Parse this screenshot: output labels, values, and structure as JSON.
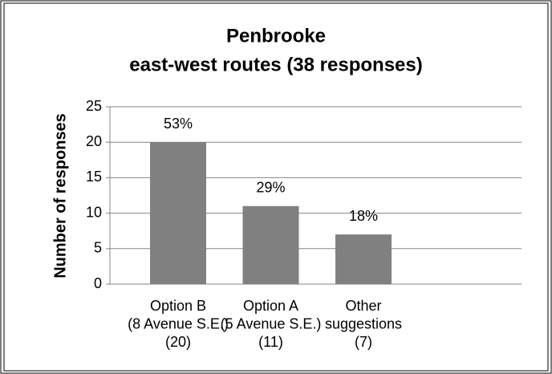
{
  "chart_data": {
    "type": "bar",
    "title": [
      "Penbrooke",
      "east-west routes (38 responses)"
    ],
    "y_label": "Number of responses",
    "categories": [
      [
        "Option B",
        "(8 Avenue S.E.)",
        "(20)"
      ],
      [
        "Option A",
        "(5 Avenue S.E.)",
        "(11)"
      ],
      [
        "Other",
        "suggestions",
        "(7)"
      ]
    ],
    "values": [
      20,
      11,
      7
    ],
    "value_labels": [
      "53%",
      "29%",
      "18%"
    ],
    "color": "#808080",
    "ylim": [
      0,
      25
    ],
    "yticks": [
      0,
      5,
      10,
      15,
      20,
      25
    ],
    "grid": true
  }
}
